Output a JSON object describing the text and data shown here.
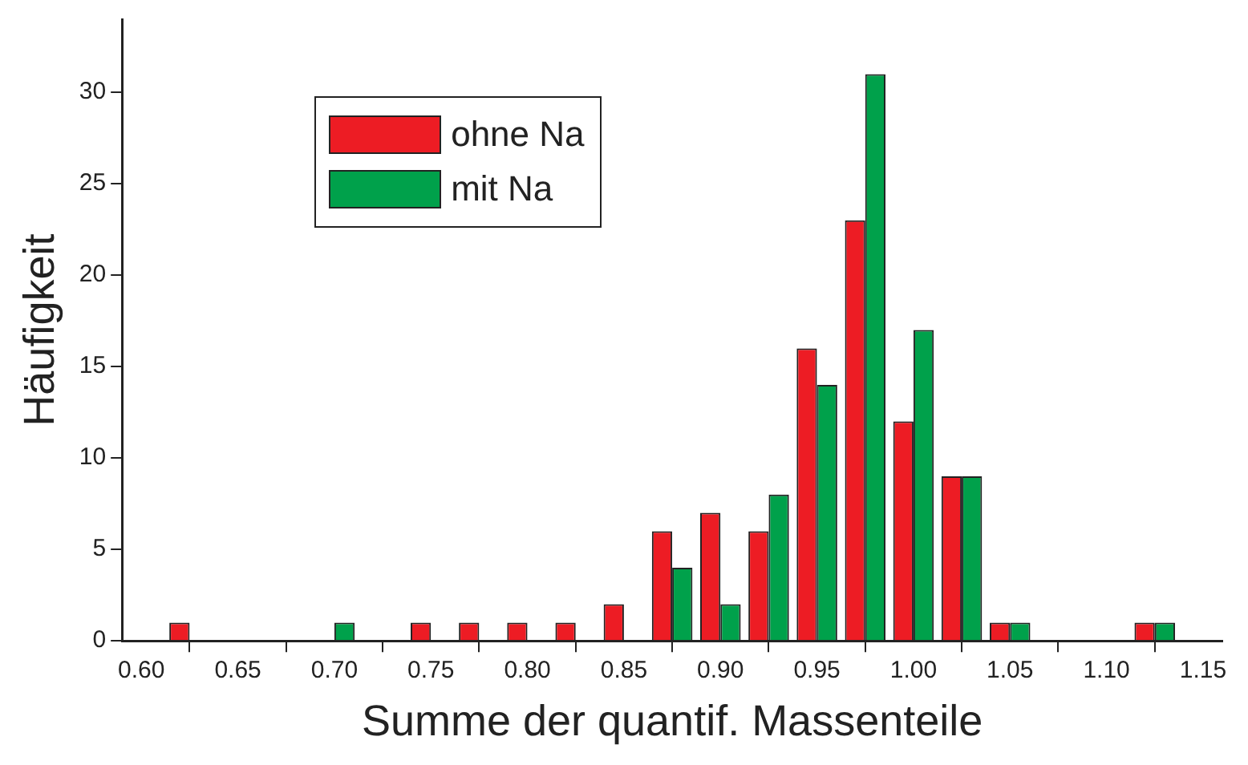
{
  "chart_data": {
    "type": "histogram",
    "xlabel": "Summe der quantif. Massenteile",
    "ylabel": "Häufigkeit",
    "bins": [
      0.6125,
      0.6375,
      0.6625,
      0.6875,
      0.7125,
      0.7375,
      0.7625,
      0.7875,
      0.8125,
      0.8375,
      0.8625,
      0.8875,
      0.9125,
      0.9375,
      0.9625,
      0.9875,
      1.0125,
      1.0375,
      1.0625,
      1.0875,
      1.1125,
      1.1375
    ],
    "series": [
      {
        "name": "ohne Na",
        "color": "#ed1c24",
        "values": [
          1,
          0,
          0,
          0,
          0,
          1,
          1,
          1,
          1,
          2,
          6,
          7,
          6,
          16,
          23,
          12,
          9,
          1,
          0,
          0,
          1
        ]
      },
      {
        "name": "mit Na",
        "color": "#00a14b",
        "values": [
          0,
          0,
          0,
          1,
          0,
          0,
          0,
          0,
          0,
          0,
          4,
          2,
          8,
          14,
          31,
          17,
          9,
          1,
          0,
          0,
          1
        ]
      }
    ],
    "xlim": [
      0.59,
      1.16
    ],
    "xticks": [
      {
        "value": 0.6,
        "label": "0.60"
      },
      {
        "value": 0.65,
        "label": "0.65"
      },
      {
        "value": 0.7,
        "label": "0.70"
      },
      {
        "value": 0.75,
        "label": "0.75"
      },
      {
        "value": 0.8,
        "label": "0.80"
      },
      {
        "value": 0.85,
        "label": "0.85"
      },
      {
        "value": 0.9,
        "label": "0.90"
      },
      {
        "value": 0.95,
        "label": "0.95"
      },
      {
        "value": 1.0,
        "label": "1.00"
      },
      {
        "value": 1.05,
        "label": "1.05"
      },
      {
        "value": 1.1,
        "label": "1.10"
      },
      {
        "value": 1.15,
        "label": "1.15"
      }
    ],
    "ylim": [
      0,
      34
    ],
    "yticks": [
      0,
      5,
      10,
      15,
      20,
      25,
      30
    ],
    "grid": false,
    "legend": "top left"
  }
}
